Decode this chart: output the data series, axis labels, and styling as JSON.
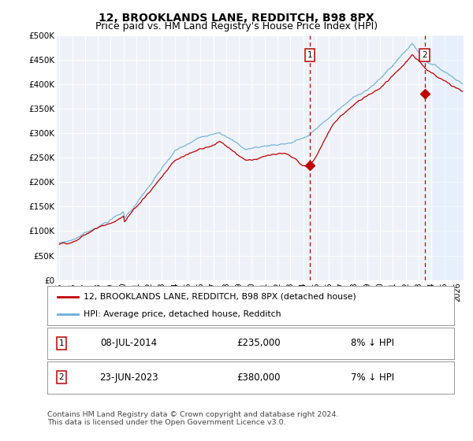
{
  "title": "12, BROOKLANDS LANE, REDDITCH, B98 8PX",
  "subtitle": "Price paid vs. HM Land Registry's House Price Index (HPI)",
  "title_fontsize": 10,
  "subtitle_fontsize": 9,
  "ylabel_ticks": [
    "£0",
    "£50K",
    "£100K",
    "£150K",
    "£200K",
    "£250K",
    "£300K",
    "£350K",
    "£400K",
    "£450K",
    "£500K"
  ],
  "ytick_values": [
    0,
    50000,
    100000,
    150000,
    200000,
    250000,
    300000,
    350000,
    400000,
    450000,
    500000
  ],
  "ylim": [
    0,
    500000
  ],
  "xlim_start": 1994.8,
  "xlim_end": 2026.5,
  "xtick_years": [
    1995,
    1996,
    1997,
    1998,
    1999,
    2000,
    2001,
    2002,
    2003,
    2004,
    2005,
    2006,
    2007,
    2008,
    2009,
    2010,
    2011,
    2012,
    2013,
    2014,
    2015,
    2016,
    2017,
    2018,
    2019,
    2020,
    2021,
    2022,
    2023,
    2024,
    2025,
    2026
  ],
  "hpi_color": "#6baed6",
  "price_color": "#c00000",
  "vline_color": "#c00000",
  "shade_color": "#ddeeff",
  "shade_alpha": 0.4,
  "shade_start": 2024.1,
  "marker1_year": 2014.52,
  "marker2_year": 2023.47,
  "marker1_label": "1",
  "marker2_label": "2",
  "marker1_price": 235000,
  "marker2_price": 380000,
  "legend_line1": "12, BROOKLANDS LANE, REDDITCH, B98 8PX (detached house)",
  "legend_line2": "HPI: Average price, detached house, Redditch",
  "table_row1_num": "1",
  "table_row1_date": "08-JUL-2014",
  "table_row1_price": "£235,000",
  "table_row1_hpi": "8% ↓ HPI",
  "table_row2_num": "2",
  "table_row2_date": "23-JUN-2023",
  "table_row2_price": "£380,000",
  "table_row2_hpi": "7% ↓ HPI",
  "footer": "Contains HM Land Registry data © Crown copyright and database right 2024.\nThis data is licensed under the Open Government Licence v3.0.",
  "background_color": "#ffffff",
  "plot_bg_color": "#eef2f8"
}
